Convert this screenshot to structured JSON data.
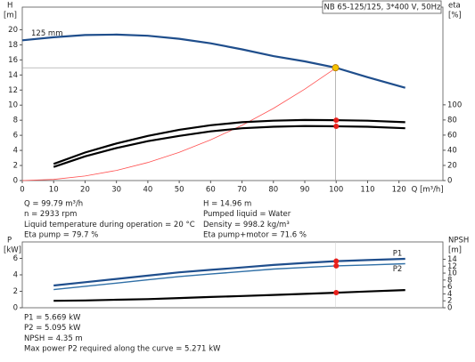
{
  "chart_data": [
    {
      "type": "line",
      "title": "NB 65-125/125, 3*400 V, 50Hz",
      "y_label": "H",
      "y_unit": "[m]",
      "y2_label": "eta",
      "y2_unit": "[%]",
      "x_label": "Q [m³/h]",
      "xlim": [
        0,
        134
      ],
      "xticks": [
        0,
        10,
        20,
        30,
        40,
        50,
        60,
        70,
        80,
        90,
        100,
        110,
        120
      ],
      "ylim": [
        0,
        23
      ],
      "yticks": [
        0,
        2,
        4,
        6,
        8,
        10,
        12,
        14,
        16,
        18,
        20
      ],
      "y2lim": [
        0,
        229
      ],
      "y2ticks": [
        0,
        20,
        40,
        60,
        80,
        100
      ],
      "duty_point": {
        "x": 99.79,
        "y": 14.96,
        "color": "#f5c400"
      },
      "series": [
        {
          "name": "125 mm",
          "color": "#1f4e8c",
          "width": 2.2,
          "x": [
            0,
            10,
            20,
            30,
            40,
            50,
            60,
            70,
            80,
            90,
            100,
            110,
            122
          ],
          "values": [
            18.6,
            19.0,
            19.3,
            19.35,
            19.2,
            18.8,
            18.2,
            17.4,
            16.5,
            15.8,
            14.96,
            13.7,
            12.3
          ]
        },
        {
          "color": "#ff5050",
          "width": 0.8,
          "x": [
            0,
            10,
            20,
            30,
            40,
            50,
            60,
            70,
            80,
            90,
            100
          ],
          "values": [
            0,
            0.15,
            0.6,
            1.35,
            2.39,
            3.74,
            5.39,
            7.33,
            9.57,
            12.12,
            14.96
          ]
        },
        {
          "color": "#000000",
          "width": 2.2,
          "axis": "y2",
          "x": [
            10,
            20,
            30,
            40,
            50,
            60,
            70,
            80,
            90,
            100,
            110,
            122
          ],
          "values": [
            22,
            37,
            49,
            59,
            67,
            73,
            77,
            79,
            80,
            79.7,
            79,
            77
          ]
        },
        {
          "color": "#000000",
          "width": 2.2,
          "axis": "y2",
          "x": [
            10,
            20,
            30,
            40,
            50,
            60,
            70,
            80,
            90,
            100,
            110,
            122
          ],
          "values": [
            18,
            32,
            43,
            52,
            59,
            65,
            69,
            71,
            72,
            71.6,
            71,
            69
          ]
        }
      ]
    },
    {
      "type": "line",
      "y_label": "P",
      "y_unit": "[kW]",
      "y2_label": "NPSH",
      "y2_unit": "[m]",
      "xlim": [
        0,
        134
      ],
      "ylim": [
        0,
        8
      ],
      "yticks": [
        0,
        2,
        4,
        6
      ],
      "y2lim": [
        0,
        19
      ],
      "y2ticks": [
        0,
        2,
        4,
        6,
        8,
        10,
        12,
        14
      ],
      "duty_point": {
        "x": 99.79
      },
      "series": [
        {
          "name": "P1",
          "color": "#1f4e8c",
          "width": 2.2,
          "x": [
            10,
            20,
            30,
            40,
            50,
            60,
            70,
            80,
            90,
            100,
            110,
            122
          ],
          "values": [
            2.7,
            3.1,
            3.5,
            3.9,
            4.3,
            4.6,
            4.9,
            5.2,
            5.45,
            5.669,
            5.8,
            5.95
          ]
        },
        {
          "name": "P2",
          "color": "#2f6fa6",
          "width": 1.4,
          "x": [
            10,
            20,
            30,
            40,
            50,
            60,
            70,
            80,
            90,
            100,
            110,
            122
          ],
          "values": [
            2.2,
            2.6,
            3.0,
            3.4,
            3.8,
            4.1,
            4.4,
            4.7,
            4.9,
            5.095,
            5.2,
            5.35
          ]
        },
        {
          "color": "#000000",
          "width": 2.2,
          "axis": "y2",
          "x": [
            10,
            20,
            30,
            40,
            50,
            60,
            70,
            80,
            90,
            100,
            110,
            122
          ],
          "values": [
            2.0,
            2.1,
            2.3,
            2.5,
            2.8,
            3.1,
            3.4,
            3.7,
            4.0,
            4.35,
            4.7,
            5.1
          ]
        }
      ]
    }
  ],
  "info_top_left": [
    "Q = 99.79 m³/h",
    "n = 2933 rpm",
    "Liquid temperature during operation = 20 °C",
    "Eta pump = 79.7 %"
  ],
  "info_top_right": [
    "H = 14.96 m",
    "Pumped liquid = Water",
    "Density = 998.2 kg/m³",
    "Eta pump+motor = 71.6 %"
  ],
  "info_bottom": [
    "P1 = 5.669 kW",
    "P2 = 5.095 kW",
    "NPSH = 4.35 m",
    "Max power P2 required along the curve = 5.271 kW"
  ]
}
